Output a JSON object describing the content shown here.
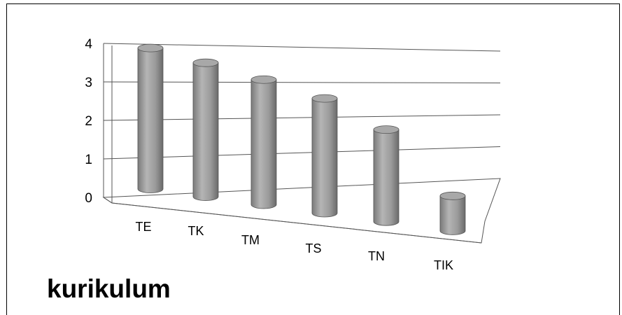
{
  "chart_data": {
    "type": "bar",
    "style": "3d-cylinder",
    "categories": [
      "TE",
      "TK",
      "TM",
      "TS",
      "TN",
      "TIK"
    ],
    "values": [
      3.8,
      3.65,
      3.45,
      3.2,
      2.6,
      1.0
    ],
    "title": "kurikulum",
    "xlabel": "",
    "ylabel": "",
    "ylim": [
      0,
      4
    ],
    "yticks": [
      "0",
      "1",
      "2",
      "3",
      "4"
    ],
    "grid": true,
    "legend": "none",
    "colors": {
      "bar": "#9b9b9b",
      "bar_dark": "#6e6e6e",
      "bar_light": "#cdcdcd",
      "grid": "#555555"
    }
  }
}
